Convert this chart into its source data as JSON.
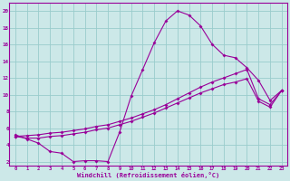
{
  "xlabel": "Windchill (Refroidissement éolien,°C)",
  "bg_color": "#cce8e8",
  "line_color": "#990099",
  "grid_color": "#99cccc",
  "xlim": [
    -0.5,
    23.5
  ],
  "ylim": [
    1.5,
    21.0
  ],
  "xticks": [
    0,
    1,
    2,
    3,
    4,
    5,
    6,
    7,
    8,
    9,
    10,
    11,
    12,
    13,
    14,
    15,
    16,
    17,
    18,
    19,
    20,
    21,
    22,
    23
  ],
  "yticks": [
    2,
    4,
    6,
    8,
    10,
    12,
    14,
    16,
    18,
    20
  ],
  "line1_x": [
    0,
    1,
    2,
    3,
    4,
    5,
    6,
    7,
    8,
    9,
    10,
    11,
    12,
    13,
    14,
    15,
    16,
    17,
    18,
    19,
    20,
    21,
    22,
    23
  ],
  "line1_y": [
    5.2,
    4.7,
    4.2,
    3.2,
    3.0,
    2.0,
    2.1,
    2.1,
    2.0,
    5.5,
    9.8,
    13.0,
    16.2,
    18.8,
    20.0,
    19.5,
    18.2,
    16.0,
    14.7,
    14.4,
    13.2,
    11.7,
    9.3,
    10.5
  ],
  "line2_x": [
    0,
    1,
    2,
    3,
    4,
    5,
    6,
    7,
    8,
    9,
    10,
    11,
    12,
    13,
    14,
    15,
    16,
    17,
    18,
    19,
    20,
    21,
    22,
    23
  ],
  "line2_y": [
    5.0,
    5.1,
    5.2,
    5.4,
    5.5,
    5.7,
    5.9,
    6.2,
    6.4,
    6.8,
    7.2,
    7.7,
    8.2,
    8.8,
    9.5,
    10.2,
    10.9,
    11.5,
    12.0,
    12.5,
    13.0,
    9.5,
    8.8,
    10.5
  ],
  "line3_x": [
    0,
    1,
    2,
    3,
    4,
    5,
    6,
    7,
    8,
    9,
    10,
    11,
    12,
    13,
    14,
    15,
    16,
    17,
    18,
    19,
    20,
    21,
    22,
    23
  ],
  "line3_y": [
    5.0,
    4.8,
    4.8,
    5.0,
    5.1,
    5.3,
    5.5,
    5.8,
    6.0,
    6.4,
    6.8,
    7.3,
    7.8,
    8.4,
    9.0,
    9.6,
    10.2,
    10.7,
    11.2,
    11.5,
    11.9,
    9.2,
    8.5,
    10.5
  ]
}
